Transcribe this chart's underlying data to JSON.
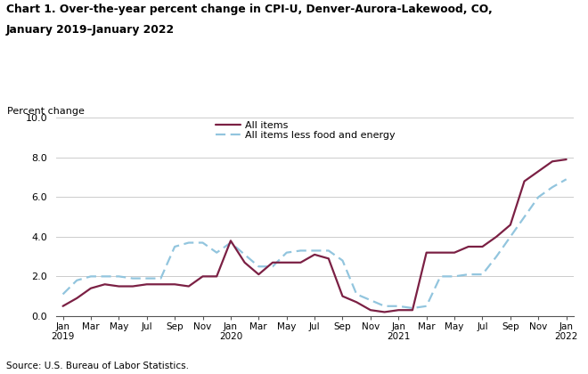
{
  "title_line1": "Chart 1. Over-the-year percent change in CPI-U, Denver-Aurora-Lakewood, CO,",
  "title_line2": "January 2019–January 2022",
  "ylabel": "Percent change",
  "source": "Source: U.S. Bureau of Labor Statistics.",
  "ylim": [
    0.0,
    10.0
  ],
  "yticks": [
    0.0,
    2.0,
    4.0,
    6.0,
    8.0,
    10.0
  ],
  "all_items_color": "#7b2044",
  "core_color": "#92c5de",
  "all_items_label": "All items",
  "core_label": "All items less food and energy",
  "x_tick_labels": [
    "Jan\n2019",
    "Mar",
    "May",
    "Jul",
    "Sep",
    "Nov",
    "Jan\n2020",
    "Mar",
    "May",
    "Jul",
    "Sep",
    "Nov",
    "Jan\n2021",
    "Mar",
    "May",
    "Jul",
    "Sep",
    "Nov",
    "Jan\n2022"
  ],
  "x_tick_positions": [
    0,
    2,
    4,
    6,
    8,
    10,
    12,
    14,
    16,
    18,
    20,
    22,
    24,
    26,
    28,
    30,
    32,
    34,
    36
  ],
  "all_items_y": [
    0.5,
    0.9,
    1.4,
    1.6,
    1.5,
    1.5,
    1.6,
    1.6,
    1.6,
    1.5,
    2.0,
    2.0,
    3.8,
    2.7,
    2.1,
    2.7,
    2.7,
    2.7,
    3.1,
    2.9,
    1.0,
    0.7,
    0.3,
    0.2,
    0.3,
    0.3,
    3.2,
    3.2,
    3.2,
    3.5,
    3.5,
    4.0,
    4.6,
    6.8,
    7.3,
    7.8,
    7.9
  ],
  "core_y": [
    1.1,
    1.8,
    2.0,
    2.0,
    2.0,
    1.9,
    1.9,
    1.9,
    3.5,
    3.7,
    3.7,
    3.2,
    3.7,
    3.1,
    2.5,
    2.5,
    3.2,
    3.3,
    3.3,
    3.3,
    2.8,
    1.1,
    0.8,
    0.5,
    0.5,
    0.4,
    0.5,
    2.0,
    2.0,
    2.1,
    2.1,
    3.0,
    4.0,
    5.0,
    6.0,
    6.5,
    6.9
  ]
}
